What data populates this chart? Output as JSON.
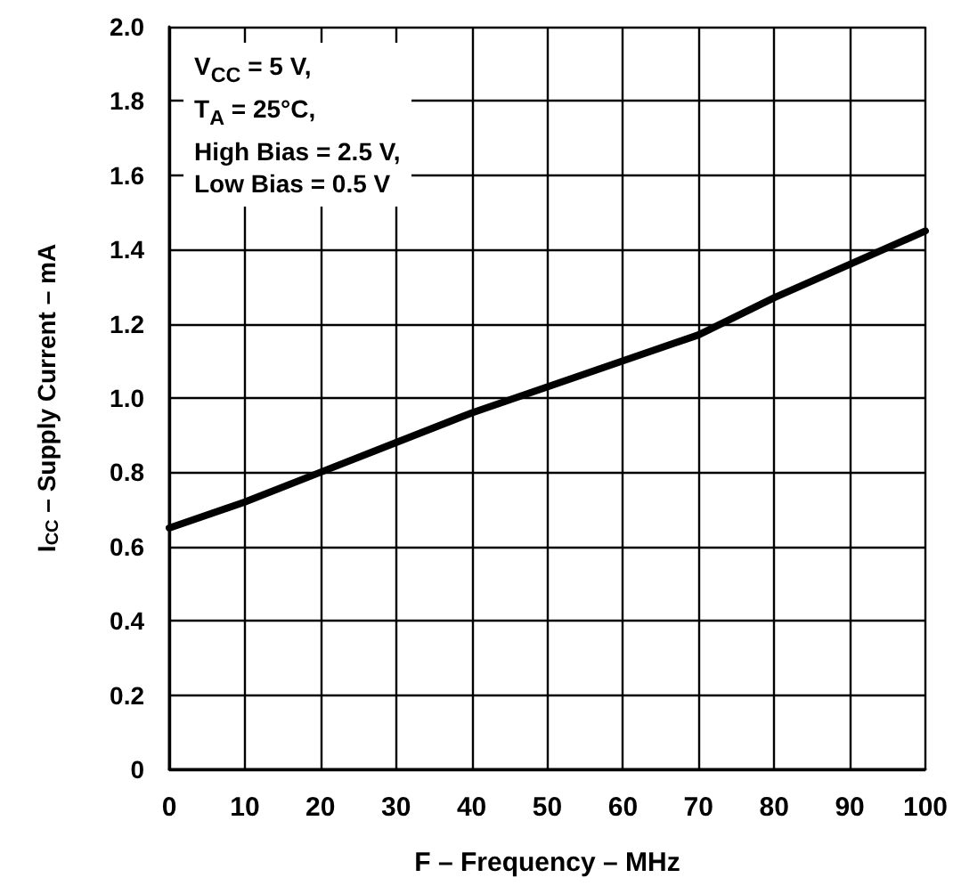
{
  "chart_data": {
    "type": "line",
    "xlabel": "F – Frequency – MHz",
    "ylabel": "I$_{CC}$ – Supply Current – mA",
    "annotations": [
      "V$_{CC}$ = 5 V,",
      "T$_{A}$ = 25°C,",
      "High Bias = 2.5 V,",
      "Low Bias = 0.5 V"
    ],
    "x": [
      0,
      10,
      20,
      30,
      40,
      50,
      60,
      70,
      80,
      90,
      100
    ],
    "series": [
      {
        "color": "#000000",
        "values": [
          0.65,
          0.72,
          0.8,
          0.88,
          0.96,
          1.03,
          1.1,
          1.17,
          1.27,
          1.36,
          1.45
        ]
      }
    ],
    "xlim": [
      0,
      100
    ],
    "xticks": [
      0,
      10,
      20,
      30,
      40,
      50,
      60,
      70,
      80,
      90,
      100
    ],
    "ylim": [
      0,
      2
    ],
    "yticks": [
      0,
      {
        "value": 0.2,
        "label": "0.2"
      },
      {
        "value": 0.4,
        "label": "0.4"
      },
      {
        "value": 0.6,
        "label": "0.6"
      },
      {
        "value": 0.8,
        "label": "0.8"
      },
      {
        "value": 1,
        "label": "1.0"
      },
      {
        "value": 1.2,
        "label": "1.2"
      },
      {
        "value": 1.4,
        "label": "1.4"
      },
      {
        "value": 1.6,
        "label": "1.6"
      },
      {
        "value": 1.8,
        "label": "1.8"
      },
      {
        "value": 2,
        "label": "2.0"
      }
    ],
    "grid": true,
    "marker": "none",
    "line_style": "solid"
  }
}
